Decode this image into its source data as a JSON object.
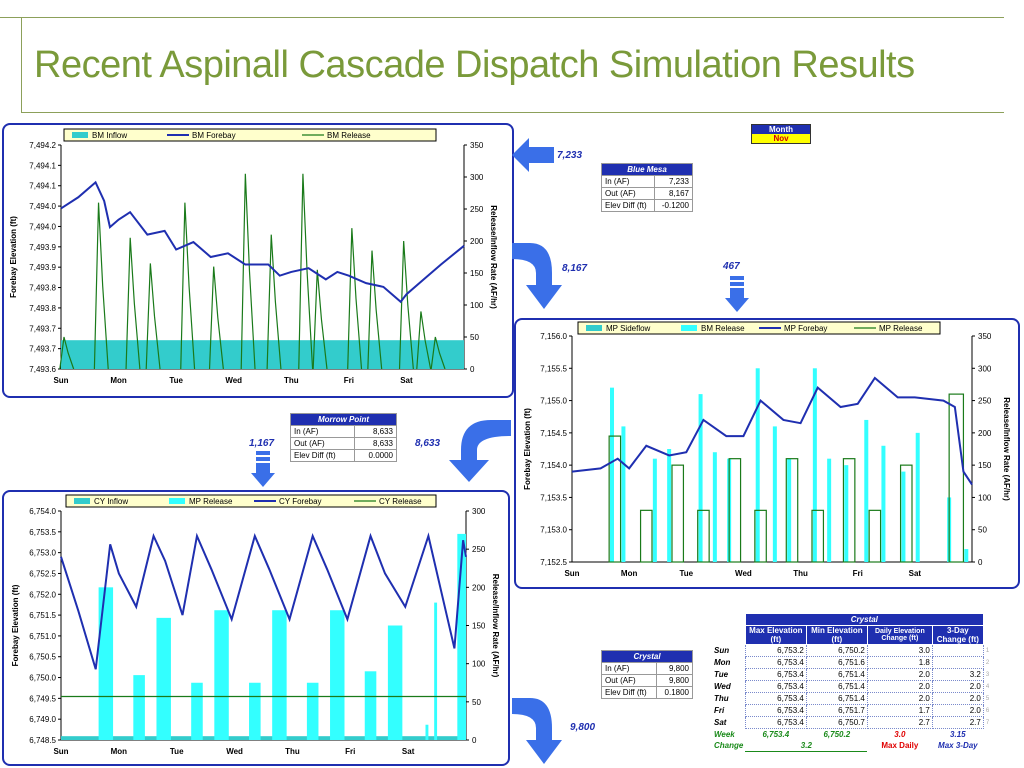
{
  "title": "Recent Aspinall Cascade Dispatch Simulation Results",
  "month_box": {
    "label": "Month",
    "value": "Nov"
  },
  "flows": {
    "bm_in": "7,233",
    "bm_to_mp": "8,167",
    "mp_side": "467",
    "mp_to_cy": "8,633",
    "cy_side": "1,167",
    "cy_out": "9,800"
  },
  "summaries": [
    {
      "name": "Blue Mesa",
      "rows": [
        [
          "In (AF)",
          "7,233"
        ],
        [
          "Out (AF)",
          "8,167"
        ],
        [
          "Elev Diff (ft)",
          "-0.1200"
        ]
      ]
    },
    {
      "name": "Morrow Point",
      "rows": [
        [
          "In (AF)",
          "8,633"
        ],
        [
          "Out (AF)",
          "8,633"
        ],
        [
          "Elev Diff (ft)",
          "0.0000"
        ]
      ]
    },
    {
      "name": "Crystal",
      "rows": [
        [
          "In (AF)",
          "9,800"
        ],
        [
          "Out (AF)",
          "9,800"
        ],
        [
          "Elev Diff (ft)",
          "0.1800"
        ]
      ]
    }
  ],
  "crystal_table": {
    "title": "Crystal",
    "headers": [
      "Max Elevation (ft)",
      "Min Elevation (ft)",
      "Daily Elevation Change (ft)",
      "3-Day Change (ft)"
    ],
    "rows": [
      {
        "day": "Sun",
        "max": "6,753.2",
        "min": "6,750.2",
        "daily": "3.0",
        "three": "",
        "idx": "1"
      },
      {
        "day": "Mon",
        "max": "6,753.4",
        "min": "6,751.6",
        "daily": "1.8",
        "three": "",
        "idx": "2"
      },
      {
        "day": "Tue",
        "max": "6,753.4",
        "min": "6,751.4",
        "daily": "2.0",
        "three": "3.2",
        "idx": "3"
      },
      {
        "day": "Wed",
        "max": "6,753.4",
        "min": "6,751.4",
        "daily": "2.0",
        "three": "2.0",
        "idx": "4"
      },
      {
        "day": "Thu",
        "max": "6,753.4",
        "min": "6,751.4",
        "daily": "2.0",
        "three": "2.0",
        "idx": "5"
      },
      {
        "day": "Fri",
        "max": "6,753.4",
        "min": "6,751.7",
        "daily": "1.7",
        "three": "2.0",
        "idx": "6"
      },
      {
        "day": "Sat",
        "max": "6,753.4",
        "min": "6,750.7",
        "daily": "2.7",
        "three": "2.7",
        "idx": "7"
      }
    ],
    "week": {
      "label": "Week",
      "max": "6,753.4",
      "min": "6,750.2",
      "daily": "3.0",
      "three": "3.15"
    },
    "change": {
      "label": "Change",
      "value": "3.2",
      "max_daily": "Max Daily",
      "max_3day": "Max 3-Day"
    }
  },
  "chart_data": [
    {
      "type": "line",
      "title": "",
      "days": [
        "Sun",
        "Mon",
        "Tue",
        "Wed",
        "Thu",
        "Fri",
        "Sat"
      ],
      "ylabel": "Forebay Elevation (ft)",
      "y2label": "Release/Inflow Rate (AF/hr)",
      "yticks": [
        "7,493.6",
        "7,493.7",
        "7,493.7",
        "7,493.8",
        "7,493.8",
        "7,493.9",
        "7,493.9",
        "7,494.0",
        "7,494.0",
        "7,494.1",
        "7,494.1",
        "7,494.2"
      ],
      "ylim": [
        7493.6,
        7494.2
      ],
      "y2lim": [
        0,
        350
      ],
      "y2ticks": [
        "0",
        "50",
        "100",
        "150",
        "200",
        "250",
        "300",
        "350"
      ],
      "legend": [
        "BM Inflow",
        "BM Forebay",
        "BM Release"
      ],
      "colors": {
        "inflow": "#33cccc",
        "forebay": "#1f2fb0",
        "release": "#1a7a1a"
      },
      "inflow_level": 45,
      "forebay": [
        [
          0,
          7494.03
        ],
        [
          0.3,
          7494.06
        ],
        [
          0.6,
          7494.1
        ],
        [
          0.75,
          7494.05
        ],
        [
          0.85,
          7493.98
        ],
        [
          1.0,
          7494.0
        ],
        [
          1.2,
          7494.02
        ],
        [
          1.5,
          7493.96
        ],
        [
          1.8,
          7493.97
        ],
        [
          2.0,
          7493.92
        ],
        [
          2.3,
          7493.94
        ],
        [
          2.6,
          7493.9
        ],
        [
          2.9,
          7493.91
        ],
        [
          3.2,
          7493.88
        ],
        [
          3.6,
          7493.88
        ],
        [
          3.8,
          7493.85
        ],
        [
          4.0,
          7493.86
        ],
        [
          4.3,
          7493.87
        ],
        [
          4.6,
          7493.84
        ],
        [
          4.8,
          7493.86
        ],
        [
          5.0,
          7493.85
        ],
        [
          5.3,
          7493.83
        ],
        [
          5.6,
          7493.82
        ],
        [
          5.9,
          7493.78
        ],
        [
          6.0,
          7493.8
        ],
        [
          6.3,
          7493.84
        ],
        [
          6.6,
          7493.88
        ],
        [
          7.0,
          7493.93
        ]
      ],
      "release_pulses": [
        [
          0.1,
          50
        ],
        [
          0.7,
          260
        ],
        [
          1.25,
          205
        ],
        [
          1.6,
          165
        ],
        [
          2.2,
          260
        ],
        [
          2.7,
          160
        ],
        [
          3.25,
          305
        ],
        [
          3.7,
          210
        ],
        [
          4.25,
          305
        ],
        [
          4.5,
          155
        ],
        [
          5.1,
          220
        ],
        [
          5.45,
          185
        ],
        [
          6.0,
          200
        ],
        [
          6.3,
          90
        ],
        [
          6.55,
          50
        ]
      ]
    },
    {
      "type": "line",
      "title": "",
      "days": [
        "Sun",
        "Mon",
        "Tue",
        "Wed",
        "Thu",
        "Fri",
        "Sat"
      ],
      "ylabel": "Forebay Elevation (ft)",
      "y2label": "Release/Inflow Rate (AF/hr)",
      "yticks": [
        "7,152.5",
        "7,153.0",
        "7,153.5",
        "7,154.0",
        "7,154.5",
        "7,155.0",
        "7,155.5",
        "7,156.0"
      ],
      "ylim": [
        7152.5,
        7156.0
      ],
      "y2lim": [
        0,
        350
      ],
      "y2ticks": [
        "0",
        "50",
        "100",
        "150",
        "200",
        "250",
        "300",
        "350"
      ],
      "legend": [
        "MP Sideflow",
        "BM Release",
        "MP Forebay",
        "MP Release"
      ],
      "colors": {
        "sideflow": "#33cccc",
        "bmrelease": "#33ffff",
        "forebay": "#1f2fb0",
        "release": "#1a7a1a"
      },
      "forebay": [
        [
          0,
          7153.9
        ],
        [
          0.5,
          7153.95
        ],
        [
          0.8,
          7154.1
        ],
        [
          1.0,
          7153.95
        ],
        [
          1.3,
          7154.3
        ],
        [
          1.7,
          7154.15
        ],
        [
          2.0,
          7154.2
        ],
        [
          2.3,
          7154.7
        ],
        [
          2.7,
          7154.45
        ],
        [
          3.0,
          7154.45
        ],
        [
          3.3,
          7155.0
        ],
        [
          3.7,
          7154.7
        ],
        [
          4.0,
          7154.65
        ],
        [
          4.3,
          7155.2
        ],
        [
          4.7,
          7154.9
        ],
        [
          5.0,
          7154.95
        ],
        [
          5.3,
          7155.35
        ],
        [
          5.7,
          7155.05
        ],
        [
          6.0,
          7155.05
        ],
        [
          6.5,
          7155.0
        ],
        [
          6.7,
          7154.9
        ],
        [
          6.85,
          7153.9
        ],
        [
          7.0,
          7153.7
        ]
      ],
      "bm_release_bars": [
        [
          0.7,
          270
        ],
        [
          0.9,
          210
        ],
        [
          1.45,
          160
        ],
        [
          1.7,
          175
        ],
        [
          2.25,
          260
        ],
        [
          2.5,
          170
        ],
        [
          2.75,
          160
        ],
        [
          3.25,
          300
        ],
        [
          3.55,
          210
        ],
        [
          3.8,
          160
        ],
        [
          4.25,
          300
        ],
        [
          4.5,
          160
        ],
        [
          4.8,
          150
        ],
        [
          5.15,
          220
        ],
        [
          5.45,
          180
        ],
        [
          5.8,
          140
        ],
        [
          6.05,
          200
        ],
        [
          6.6,
          100
        ],
        [
          6.9,
          20
        ]
      ],
      "release_blocks": [
        [
          0.65,
          0.85,
          195
        ],
        [
          1.2,
          1.4,
          80
        ],
        [
          1.75,
          1.95,
          150
        ],
        [
          2.2,
          2.4,
          80
        ],
        [
          2.75,
          2.95,
          160
        ],
        [
          3.2,
          3.4,
          80
        ],
        [
          3.75,
          3.95,
          160
        ],
        [
          4.2,
          4.4,
          80
        ],
        [
          4.75,
          4.95,
          160
        ],
        [
          5.2,
          5.4,
          80
        ],
        [
          5.75,
          5.95,
          150
        ],
        [
          6.6,
          6.85,
          260
        ]
      ]
    },
    {
      "type": "line",
      "title": "",
      "days": [
        "Sun",
        "Mon",
        "Tue",
        "Wed",
        "Thu",
        "Fri",
        "Sat"
      ],
      "ylabel": "Forebay Elevation (ft)",
      "y2label": "Release/Inflow Rate (AF/hr)",
      "yticks": [
        "6,748.5",
        "6,749.0",
        "6,749.5",
        "6,750.0",
        "6,750.5",
        "6,751.0",
        "6,751.5",
        "6,752.0",
        "6,752.5",
        "6,753.0",
        "6,753.5",
        "6,754.0"
      ],
      "ylim": [
        6748.5,
        6754.0
      ],
      "y2lim": [
        0,
        300
      ],
      "y2ticks": [
        "0",
        "50",
        "100",
        "150",
        "200",
        "250",
        "300"
      ],
      "legend": [
        "CY Inflow",
        "MP Release",
        "CY Forebay",
        "CY Release"
      ],
      "colors": {
        "inflow": "#33cccc",
        "mprelease": "#33ffff",
        "forebay": "#1f2fb0",
        "release": "#1a7a1a"
      },
      "inflow_level": 5,
      "release_level": 57,
      "forebay": [
        [
          0,
          6752.9
        ],
        [
          0.3,
          6751.6
        ],
        [
          0.6,
          6750.2
        ],
        [
          0.85,
          6753.2
        ],
        [
          1.0,
          6752.5
        ],
        [
          1.3,
          6751.7
        ],
        [
          1.6,
          6753.4
        ],
        [
          1.8,
          6752.8
        ],
        [
          2.1,
          6751.5
        ],
        [
          2.35,
          6753.4
        ],
        [
          2.6,
          6752.6
        ],
        [
          2.95,
          6751.4
        ],
        [
          3.35,
          6753.4
        ],
        [
          3.6,
          6752.6
        ],
        [
          3.95,
          6751.4
        ],
        [
          4.35,
          6753.4
        ],
        [
          4.6,
          6752.6
        ],
        [
          4.95,
          6751.4
        ],
        [
          5.35,
          6753.4
        ],
        [
          5.6,
          6752.5
        ],
        [
          5.95,
          6751.7
        ],
        [
          6.35,
          6753.4
        ],
        [
          6.65,
          6751.6
        ],
        [
          6.8,
          6750.7
        ],
        [
          6.95,
          6753.3
        ],
        [
          7.0,
          6752.9
        ]
      ],
      "mp_release_bars": [
        [
          0.65,
          0.9,
          200
        ],
        [
          1.25,
          1.45,
          85
        ],
        [
          1.65,
          1.9,
          160
        ],
        [
          2.25,
          2.45,
          75
        ],
        [
          2.65,
          2.9,
          170
        ],
        [
          3.25,
          3.45,
          75
        ],
        [
          3.65,
          3.9,
          170
        ],
        [
          4.25,
          4.45,
          75
        ],
        [
          4.65,
          4.9,
          170
        ],
        [
          5.25,
          5.45,
          90
        ],
        [
          5.65,
          5.9,
          150
        ],
        [
          6.3,
          6.35,
          20
        ],
        [
          6.45,
          6.5,
          180
        ],
        [
          6.85,
          7.0,
          270
        ]
      ]
    }
  ]
}
